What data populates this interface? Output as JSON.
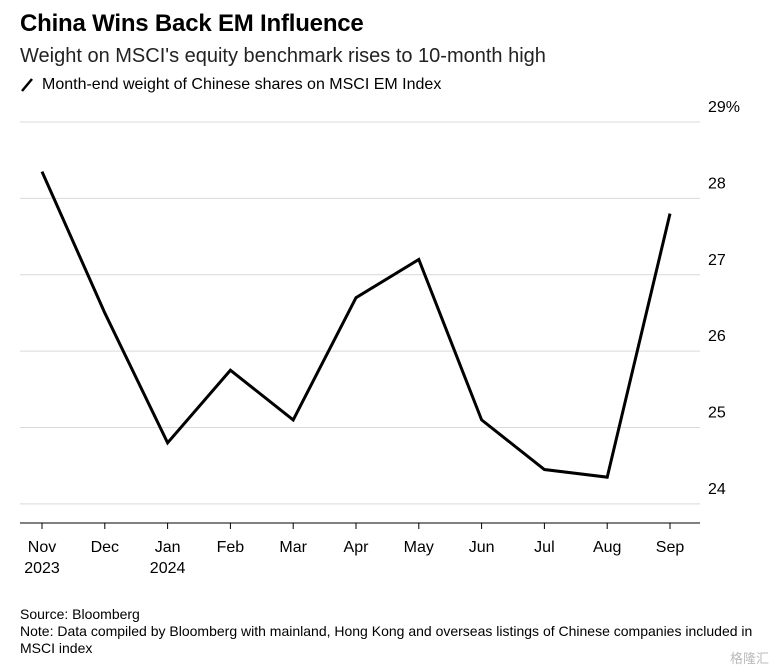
{
  "chart_data": {
    "type": "line",
    "title": "China Wins Back EM Influence",
    "subtitle": "Weight on MSCI's equity benchmark rises to 10-month high",
    "legend": "Month-end weight of Chinese shares on MSCI EM Index",
    "x_tick_labels": [
      {
        "month": "Nov",
        "year": "2023"
      },
      {
        "month": "Dec",
        "year": ""
      },
      {
        "month": "Jan",
        "year": "2024"
      },
      {
        "month": "Feb",
        "year": ""
      },
      {
        "month": "Mar",
        "year": ""
      },
      {
        "month": "Apr",
        "year": ""
      },
      {
        "month": "May",
        "year": ""
      },
      {
        "month": "Jun",
        "year": ""
      },
      {
        "month": "Jul",
        "year": ""
      },
      {
        "month": "Aug",
        "year": ""
      },
      {
        "month": "Sep",
        "year": ""
      }
    ],
    "y_tick_labels": [
      "24",
      "25",
      "26",
      "27",
      "28",
      "29%"
    ],
    "y_ticks": [
      24,
      25,
      26,
      27,
      28,
      29
    ],
    "ylim": [
      23.75,
      29
    ],
    "y_axis_side": "right",
    "grid": true,
    "series": [
      {
        "name": "Month-end weight of Chinese shares on MSCI EM Index",
        "color": "#000000",
        "values": [
          28.35,
          26.5,
          24.8,
          25.75,
          25.1,
          26.7,
          27.2,
          25.1,
          24.45,
          24.35,
          27.8
        ]
      }
    ]
  },
  "footer": {
    "source": "Source: Bloomberg",
    "note": "Note: Data compiled by Bloomberg with mainland, Hong Kong and overseas listings of Chinese companies included in MSCI index"
  },
  "watermark": "格隆汇",
  "colors": {
    "line": "#000000",
    "grid": "#d9d9d9",
    "axis": "#000000"
  }
}
